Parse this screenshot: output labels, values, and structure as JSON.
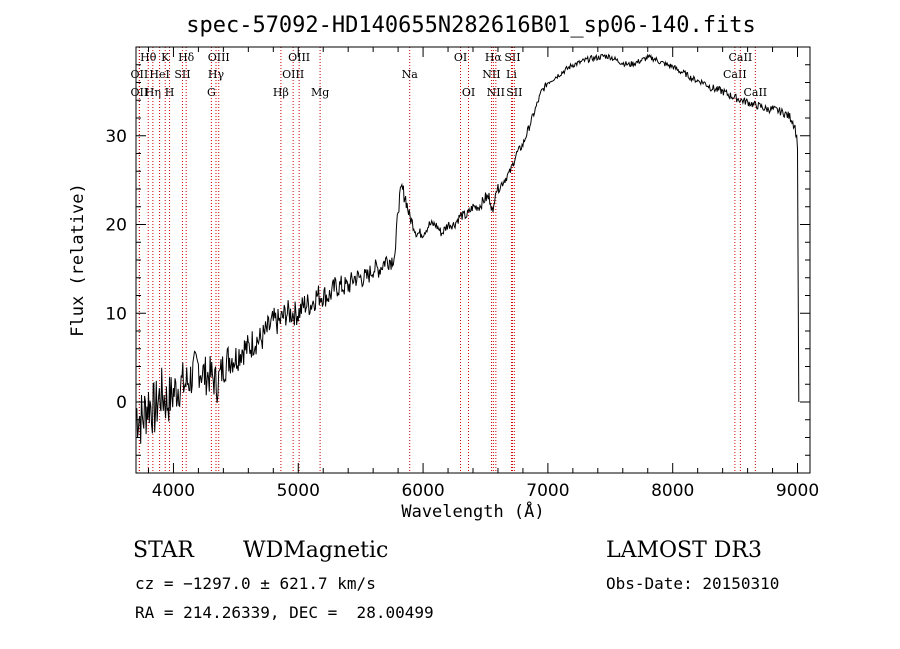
{
  "chart_data": {
    "type": "line",
    "title": "spec-57092-HD140655N282616B01_sp06-140.fits",
    "xlabel": "Wavelength (Å)",
    "ylabel": "Flux (relative)",
    "xlim": [
      3700,
      9100
    ],
    "ylim": [
      -8,
      40
    ],
    "x_ticks": [
      4000,
      5000,
      6000,
      7000,
      8000,
      9000
    ],
    "y_ticks": [
      0,
      10,
      20,
      30
    ],
    "series": [
      {
        "name": "flux",
        "x": [
          3700,
          3750,
          3800,
          3850,
          3900,
          3950,
          4000,
          4050,
          4100,
          4150,
          4200,
          4250,
          4300,
          4350,
          4400,
          4450,
          4500,
          4550,
          4600,
          4650,
          4700,
          4750,
          4800,
          4850,
          4900,
          4950,
          5000,
          5050,
          5100,
          5150,
          5200,
          5250,
          5300,
          5350,
          5400,
          5450,
          5500,
          5550,
          5600,
          5650,
          5700,
          5750,
          5780,
          5800,
          5830,
          5860,
          5890,
          5920,
          5950,
          6000,
          6050,
          6100,
          6150,
          6200,
          6250,
          6300,
          6350,
          6400,
          6450,
          6500,
          6540,
          6560,
          6580,
          6600,
          6650,
          6700,
          6750,
          6800,
          6850,
          6900,
          6950,
          7000,
          7050,
          7100,
          7150,
          7200,
          7250,
          7300,
          7350,
          7400,
          7450,
          7500,
          7550,
          7600,
          7650,
          7700,
          7750,
          7800,
          7850,
          7900,
          7950,
          8000,
          8050,
          8100,
          8150,
          8200,
          8250,
          8300,
          8350,
          8400,
          8450,
          8500,
          8550,
          8600,
          8650,
          8700,
          8750,
          8800,
          8850,
          8900,
          8950,
          8980,
          9000,
          9010
        ],
        "y": [
          -1,
          -2,
          0,
          -1,
          1,
          0,
          1,
          2,
          2,
          3,
          4,
          3,
          3,
          2,
          4,
          5,
          5,
          6,
          6,
          7,
          7,
          8,
          9,
          9,
          10,
          10,
          10,
          11,
          11,
          12,
          12,
          12,
          13,
          13,
          13,
          14,
          14,
          14,
          15,
          15,
          16,
          16,
          17,
          22,
          24,
          23,
          21,
          20,
          19,
          19,
          20,
          20,
          19,
          20,
          20,
          21,
          21,
          22,
          22,
          23,
          23,
          21,
          24,
          24,
          25,
          26,
          28,
          29,
          31,
          33,
          35,
          36,
          36.5,
          37,
          37.5,
          38,
          38.2,
          38.5,
          38.7,
          38.8,
          39,
          38.9,
          38.5,
          38.2,
          38,
          38.2,
          38.5,
          38.8,
          38.7,
          38.3,
          38,
          37.8,
          37.3,
          37,
          36.5,
          36.2,
          36,
          35.5,
          35.2,
          35,
          34.6,
          34.3,
          34,
          33.8,
          33.5,
          33.3,
          33,
          33,
          32.8,
          32.5,
          32,
          31,
          29,
          0
        ],
        "noise_sigma": [
          3.2,
          3.2,
          3.0,
          2.9,
          2.8,
          2.7,
          2.5,
          2.5,
          2.4,
          2.3,
          2.2,
          2.1,
          2.0,
          2.0,
          1.9,
          1.8,
          1.7,
          1.7,
          1.6,
          1.6,
          1.5,
          1.5,
          1.5,
          1.4,
          1.4,
          1.3,
          1.3,
          1.3,
          1.3,
          1.3,
          1.2,
          1.2,
          1.2,
          1.2,
          1.1,
          1.1,
          1.1,
          1.0,
          1.0,
          1.0,
          1.0,
          1.0,
          1.0,
          0.9,
          0.9,
          0.8,
          0.7,
          0.6,
          0.6,
          0.5,
          0.5,
          0.5,
          0.5,
          0.5,
          0.5,
          0.5,
          0.5,
          0.5,
          0.5,
          0.6,
          0.8,
          0.5,
          0.5,
          0.5,
          0.5,
          0.4,
          0.4,
          0.4,
          0.4,
          0.4,
          0.4,
          0.3,
          0.3,
          0.3,
          0.3,
          0.3,
          0.3,
          0.3,
          0.3,
          0.3,
          0.3,
          0.3,
          0.3,
          0.3,
          0.3,
          0.3,
          0.3,
          0.3,
          0.3,
          0.3,
          0.3,
          0.3,
          0.3,
          0.3,
          0.3,
          0.3,
          0.3,
          0.4,
          0.4,
          0.4,
          0.4,
          0.4,
          0.4,
          0.4,
          0.4,
          0.4,
          0.4,
          0.4,
          0.4,
          0.4,
          0.5,
          0.5,
          0.5,
          0
        ]
      }
    ],
    "line_markers": [
      {
        "label": "Hθ",
        "wavelength": 3798,
        "row": 1
      },
      {
        "label": "OII",
        "wavelength": 3727,
        "row": 2
      },
      {
        "label": "OII",
        "wavelength": 3727,
        "row": 3
      },
      {
        "label": "Hη",
        "wavelength": 3835,
        "row": 3
      },
      {
        "label": "HeI",
        "wavelength": 3889,
        "row": 2
      },
      {
        "label": "K",
        "wavelength": 3934,
        "row": 1
      },
      {
        "label": "H",
        "wavelength": 3969,
        "row": 3
      },
      {
        "label": "SII",
        "wavelength": 4072,
        "row": 2
      },
      {
        "label": "Hδ",
        "wavelength": 4102,
        "row": 1
      },
      {
        "label": "G",
        "wavelength": 4304,
        "row": 3
      },
      {
        "label": "Hγ",
        "wavelength": 4341,
        "row": 2
      },
      {
        "label": "OIII",
        "wavelength": 4363,
        "row": 1
      },
      {
        "label": "Hβ",
        "wavelength": 4861,
        "row": 3
      },
      {
        "label": "OIII",
        "wavelength": 4959,
        "row": 2
      },
      {
        "label": "OIII",
        "wavelength": 5007,
        "row": 1
      },
      {
        "label": "Mg",
        "wavelength": 5175,
        "row": 3
      },
      {
        "label": "Na",
        "wavelength": 5893,
        "row": 2
      },
      {
        "label": "OI",
        "wavelength": 6300,
        "row": 1
      },
      {
        "label": "OI",
        "wavelength": 6364,
        "row": 3
      },
      {
        "label": "NII",
        "wavelength": 6548,
        "row": 2
      },
      {
        "label": "Hα",
        "wavelength": 6563,
        "row": 1
      },
      {
        "label": "NII",
        "wavelength": 6583,
        "row": 3
      },
      {
        "label": "Li",
        "wavelength": 6708,
        "row": 2
      },
      {
        "label": "SII",
        "wavelength": 6716,
        "row": 1
      },
      {
        "label": "SII",
        "wavelength": 6731,
        "row": 3
      },
      {
        "label": "CaII",
        "wavelength": 8498,
        "row": 2
      },
      {
        "label": "CaII",
        "wavelength": 8542,
        "row": 1
      },
      {
        "label": "CaII",
        "wavelength": 8662,
        "row": 3
      }
    ],
    "colors": {
      "line": "#000000",
      "markers": "#cc0000",
      "axes": "#000000"
    }
  },
  "info": {
    "class": "STAR",
    "subclass": "WDMagnetic",
    "survey": "LAMOST DR3",
    "redshift": "cz = −1297.0 ± 621.7 km/s",
    "obs_date": "Obs-Date: 20150310",
    "coords": "RA = 214.26339, DEC =  28.00499"
  }
}
